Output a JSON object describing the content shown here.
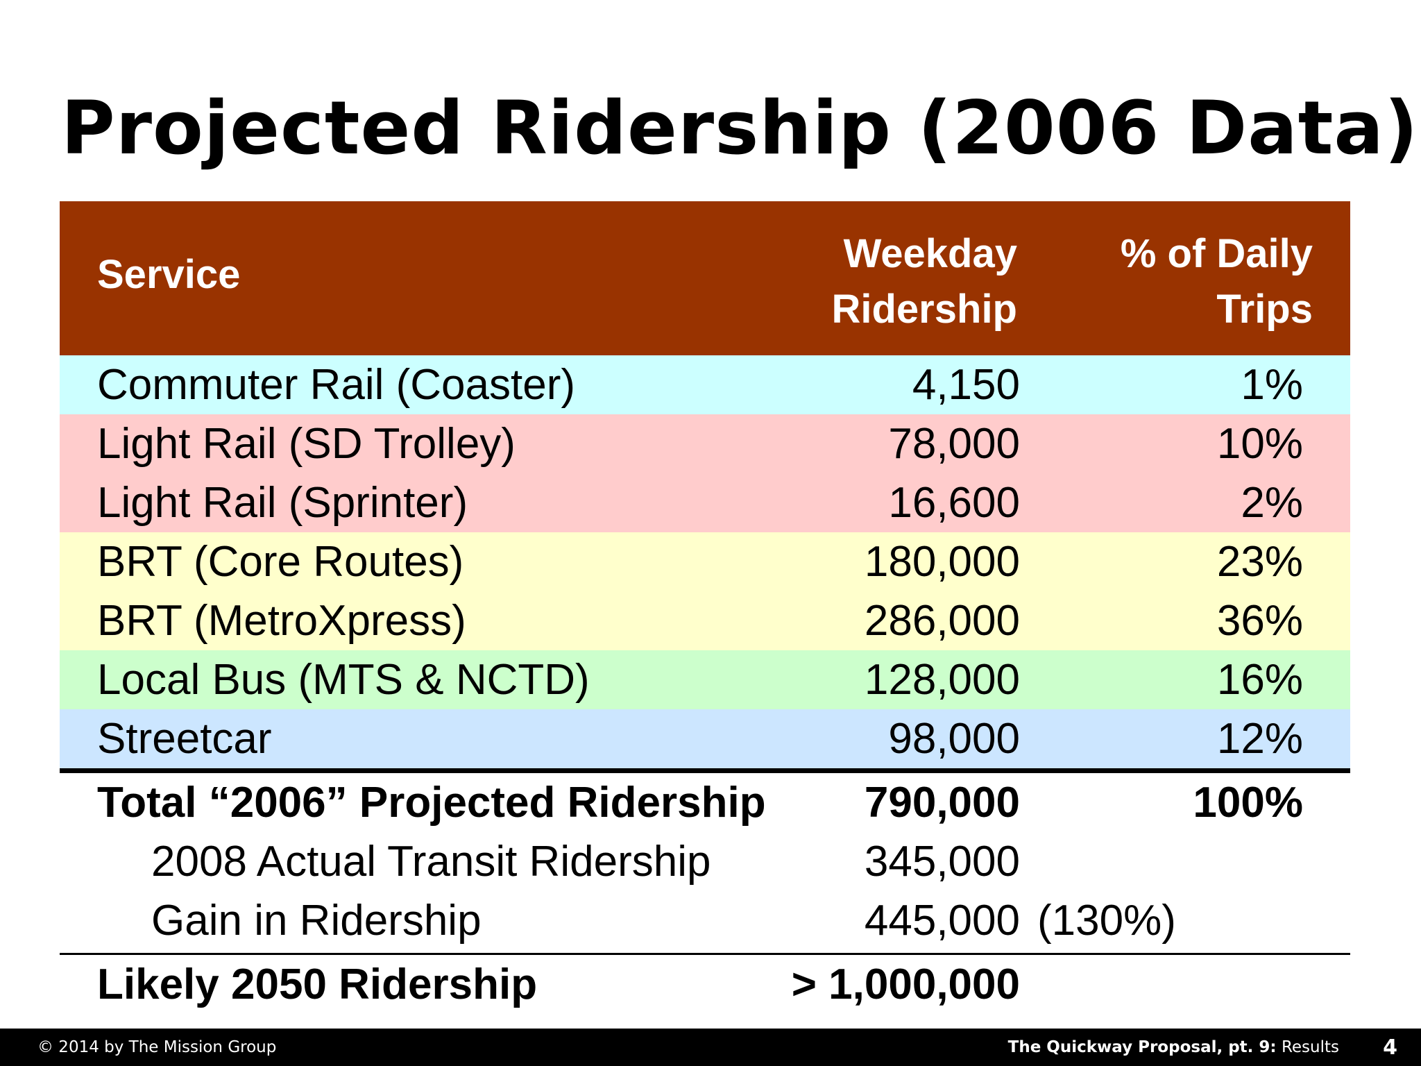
{
  "title": "Projected Ridership (2006 Data)",
  "table": {
    "headers": {
      "service": "Service",
      "weekday_line1": "Weekday",
      "weekday_line2": "Ridership",
      "pct_line1": "% of Daily",
      "pct_line2": "Trips"
    },
    "header_color": "#993300",
    "rows": [
      {
        "service": "Commuter Rail (Coaster)",
        "weekday": "4,150",
        "pct": "1%",
        "color": "#ccffff"
      },
      {
        "service": "Light Rail (SD Trolley)",
        "weekday": "78,000",
        "pct": "10%",
        "color": "#ffcccc"
      },
      {
        "service": "Light Rail (Sprinter)",
        "weekday": "16,600",
        "pct": "2%",
        "color": "#ffcccc"
      },
      {
        "service": "BRT (Core Routes)",
        "weekday": "180,000",
        "pct": "23%",
        "color": "#ffffcc"
      },
      {
        "service": "BRT (MetroXpress)",
        "weekday": "286,000",
        "pct": "36%",
        "color": "#ffffcc"
      },
      {
        "service": "Local Bus (MTS & NCTD)",
        "weekday": "128,000",
        "pct": "16%",
        "color": "#ccffcc"
      },
      {
        "service": "Streetcar",
        "weekday": "98,000",
        "pct": "12%",
        "color": "#cce6ff"
      }
    ],
    "total": {
      "service": "Total “2006” Projected Ridership",
      "weekday": "790,000",
      "pct": "100%"
    },
    "actual_2008": {
      "service": "2008 Actual Transit Ridership",
      "weekday": "345,000"
    },
    "gain": {
      "service": "Gain in Ridership",
      "weekday": "445,000",
      "note": "(130%)"
    },
    "likely_2050": {
      "service": "Likely 2050 Ridership",
      "weekday": "> 1,000,000"
    }
  },
  "footer": {
    "copyright": "© 2014 by The Mission Group",
    "presentation_bold": "The Quickway Proposal, pt. 9:",
    "presentation_section": "Results",
    "page_number": "4"
  }
}
